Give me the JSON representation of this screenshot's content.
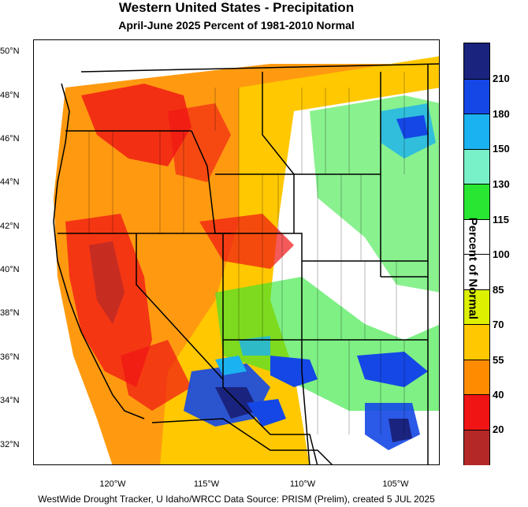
{
  "title": "Western United States - Precipitation",
  "subtitle": "April-June 2025  Percent of 1981-2010 Normal",
  "legend": {
    "title": "Percent of Normal",
    "labels": [
      "210",
      "180",
      "150",
      "130",
      "115",
      "100",
      "85",
      "70",
      "55",
      "40",
      "20"
    ],
    "colors": [
      "#1a237e",
      "#1447e6",
      "#1ab2f0",
      "#78f0c8",
      "#28e632",
      "#ffffff",
      "#ffffff",
      "#dcf000",
      "#ffc800",
      "#ff8c00",
      "#f01414",
      "#b42828"
    ]
  },
  "y_axis_labels": [
    "50°N",
    "48°N",
    "46°N",
    "44°N",
    "42°N",
    "40°N",
    "38°N",
    "36°N",
    "34°N",
    "32°N"
  ],
  "x_axis_labels": [
    "120°W",
    "115°W",
    "110°W",
    "105°W"
  ],
  "footer": "WestWide Drought Tracker, U Idaho/WRCC Data Source: PRISM (Prelim), created  5 JUL 2025",
  "colors": {
    "land_no_data": "#ffffff",
    "ocean": "#ffffff",
    "boundary": "#000000"
  }
}
